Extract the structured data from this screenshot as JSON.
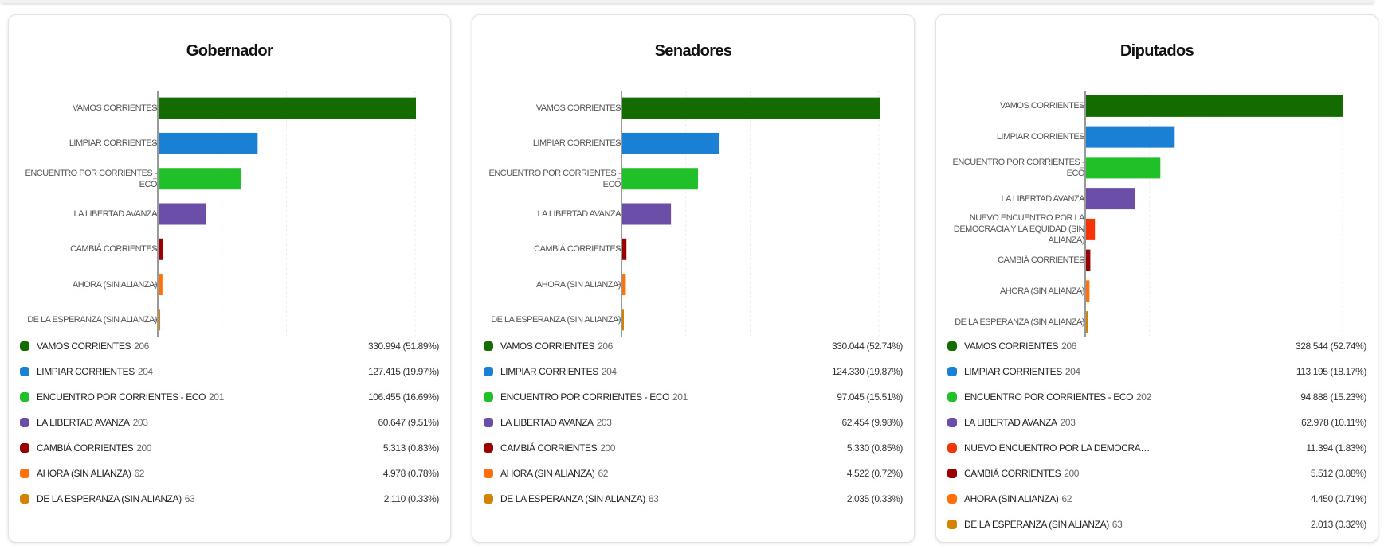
{
  "colors": {
    "VAMOS CORRIENTES": "#146b00",
    "LIMPIAR CORRIENTES": "#1a80d3",
    "ENCUENTRO POR CORRIENTES - ECO": "#20c128",
    "LA LIBERTAD AVANZA": "#6a4ea7",
    "NUEVO ENCUENTRO POR LA DEMOCRACIA Y LA EQUIDAD (SIN ALIANZA)": "#f53408",
    "CAMBIÁ CORRIENTES": "#990000",
    "AHORA (SIN ALIANZA)": "#ff7209",
    "DE LA ESPERANZA (SIN ALIANZA)": "#d28305"
  },
  "chart_data": [
    {
      "type": "bar",
      "title": "Gobernador",
      "categories": [
        "VAMOS CORRIENTES",
        "LIMPIAR CORRIENTES",
        "ENCUENTRO POR CORRIENTES - ECO",
        "LA LIBERTAD AVANZA",
        "CAMBIÁ CORRIENTES",
        "AHORA (SIN ALIANZA)",
        "DE LA ESPERANZA (SIN ALIANZA)"
      ],
      "axis_labels": [
        "VAMOS CORRIENTES",
        "LIMPIAR CORRIENTES",
        "ENCUENTRO POR CORRIENTES - ECO",
        "LA LIBERTAD AVANZA",
        "CAMBIÁ CORRIENTES",
        "AHORA (SIN ALIANZA)",
        "DE LA ESPERANZA (SIN ALIANZA)"
      ],
      "values": [
        330994,
        127415,
        106455,
        60647,
        5313,
        4978,
        2110
      ],
      "legend": [
        {
          "name": "VAMOS CORRIENTES",
          "num": "206",
          "value": "330.994 (51.89%)"
        },
        {
          "name": "LIMPIAR CORRIENTES",
          "num": "204",
          "value": "127.415 (19.97%)"
        },
        {
          "name": "ENCUENTRO POR CORRIENTES - ECO",
          "num": "201",
          "value": "106.455 (16.69%)"
        },
        {
          "name": "LA LIBERTAD AVANZA",
          "num": "203",
          "value": "60.647 (9.51%)"
        },
        {
          "name": "CAMBIÁ CORRIENTES",
          "num": "200",
          "value": "5.313 (0.83%)"
        },
        {
          "name": "AHORA (SIN ALIANZA)",
          "num": "62",
          "value": "4.978 (0.78%)"
        },
        {
          "name": "DE LA ESPERANZA (SIN ALIANZA)",
          "num": "63",
          "value": "2.110 (0.33%)"
        }
      ]
    },
    {
      "type": "bar",
      "title": "Senadores",
      "categories": [
        "VAMOS CORRIENTES",
        "LIMPIAR CORRIENTES",
        "ENCUENTRO POR CORRIENTES - ECO",
        "LA LIBERTAD AVANZA",
        "CAMBIÁ CORRIENTES",
        "AHORA (SIN ALIANZA)",
        "DE LA ESPERANZA (SIN ALIANZA)"
      ],
      "axis_labels": [
        "VAMOS CORRIENTES",
        "LIMPIAR CORRIENTES",
        "ENCUENTRO POR CORRIENTES - ECO",
        "LA LIBERTAD AVANZA",
        "CAMBIÁ CORRIENTES",
        "AHORA (SIN ALIANZA)",
        "DE LA ESPERANZA (SIN ALIANZA)"
      ],
      "values": [
        330044,
        124330,
        97045,
        62454,
        5330,
        4522,
        2035
      ],
      "legend": [
        {
          "name": "VAMOS CORRIENTES",
          "num": "206",
          "value": "330.044 (52.74%)"
        },
        {
          "name": "LIMPIAR CORRIENTES",
          "num": "204",
          "value": "124.330 (19.87%)"
        },
        {
          "name": "ENCUENTRO POR CORRIENTES - ECO",
          "num": "201",
          "value": "97.045 (15.51%)"
        },
        {
          "name": "LA LIBERTAD AVANZA",
          "num": "203",
          "value": "62.454 (9.98%)"
        },
        {
          "name": "CAMBIÁ CORRIENTES",
          "num": "200",
          "value": "5.330 (0.85%)"
        },
        {
          "name": "AHORA (SIN ALIANZA)",
          "num": "62",
          "value": "4.522 (0.72%)"
        },
        {
          "name": "DE LA ESPERANZA (SIN ALIANZA)",
          "num": "63",
          "value": "2.035 (0.33%)"
        }
      ]
    },
    {
      "type": "bar",
      "title": "Diputados",
      "categories": [
        "VAMOS CORRIENTES",
        "LIMPIAR CORRIENTES",
        "ENCUENTRO POR CORRIENTES - ECO",
        "LA LIBERTAD AVANZA",
        "NUEVO ENCUENTRO POR LA DEMOCRACIA Y LA EQUIDAD (SIN ALIANZA)",
        "CAMBIÁ CORRIENTES",
        "AHORA (SIN ALIANZA)",
        "DE LA ESPERANZA (SIN ALIANZA)"
      ],
      "axis_labels": [
        "VAMOS CORRIENTES",
        "LIMPIAR CORRIENTES",
        "ENCUENTRO POR CORRIENTES - ECO",
        "LA LIBERTAD AVANZA",
        "NUEVO ENCUENTRO POR LA DEMOCRACIA Y LA EQUIDAD (SIN ALIANZA)",
        "CAMBIÁ CORRIENTES",
        "AHORA (SIN ALIANZA)",
        "DE LA ESPERANZA (SIN ALIANZA)"
      ],
      "values": [
        328544,
        113195,
        94888,
        62978,
        11394,
        5512,
        4450,
        2013
      ],
      "legend": [
        {
          "name": "VAMOS CORRIENTES",
          "num": "206",
          "value": "328.544 (52.74%)"
        },
        {
          "name": "LIMPIAR CORRIENTES",
          "num": "204",
          "value": "113.195 (18.17%)"
        },
        {
          "name": "ENCUENTRO POR CORRIENTES - ECO",
          "num": "202",
          "value": "94.888 (15.23%)"
        },
        {
          "name": "LA LIBERTAD AVANZA",
          "num": "203",
          "value": "62.978 (10.11%)"
        },
        {
          "name": "NUEVO ENCUENTRO POR LA DEMOCRACIA Y LA EQUIDAD (SIN ALIANZA)",
          "num": "",
          "value": "11.394 (1.83%)"
        },
        {
          "name": "CAMBIÁ CORRIENTES",
          "num": "200",
          "value": "5.512 (0.88%)"
        },
        {
          "name": "AHORA (SIN ALIANZA)",
          "num": "62",
          "value": "4.450 (0.71%)"
        },
        {
          "name": "DE LA ESPERANZA (SIN ALIANZA)",
          "num": "63",
          "value": "2.013 (0.32%)"
        }
      ]
    }
  ]
}
